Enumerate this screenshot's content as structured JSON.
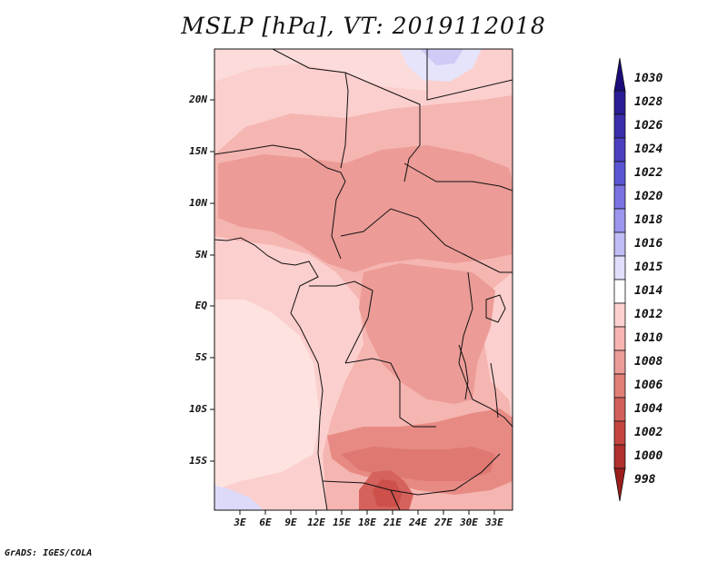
{
  "title": "MSLP [hPa], VT: 2019112018",
  "credit": "GrADS: IGES/COLA",
  "lat_labels": [
    "20N",
    "15N",
    "10N",
    "5N",
    "EQ",
    "5S",
    "10S",
    "15S"
  ],
  "lon_labels": [
    "3E",
    "6E",
    "9E",
    "12E",
    "15E",
    "18E",
    "21E",
    "24E",
    "27E",
    "30E",
    "33E"
  ],
  "colorbar": {
    "levels": [
      "1030",
      "1028",
      "1026",
      "1024",
      "1022",
      "1020",
      "1018",
      "1016",
      "1015",
      "1014",
      "1012",
      "1010",
      "1008",
      "1006",
      "1004",
      "1002",
      "1000",
      "998"
    ],
    "colors": [
      "#1a0d7a",
      "#2a1d94",
      "#3a2eab",
      "#4b3fc0",
      "#5a55d2",
      "#7a72e2",
      "#9c96ee",
      "#c0bcf6",
      "#e0defb",
      "#ffffff",
      "#fdd0d0",
      "#f8b4b1",
      "#ec9c96",
      "#e07f78",
      "#d2605a",
      "#c44540",
      "#b0302c",
      "#9a1e1b"
    ]
  },
  "map": {
    "field": "MSLP",
    "units": "hPa",
    "valid_time": "2019112018",
    "lon_range": [
      0,
      35
    ],
    "lat_range": [
      -20,
      25
    ]
  }
}
